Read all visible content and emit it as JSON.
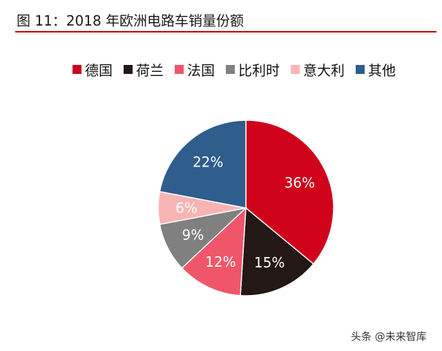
{
  "header": {
    "title": "图 11：2018 年欧洲电路车销量份额"
  },
  "chart_data": {
    "type": "pie",
    "title": "",
    "legend_position": "top",
    "start_angle_deg": 0,
    "direction": "clockwise",
    "slices": [
      {
        "label": "德国",
        "value": 36,
        "value_label": "36%",
        "color": "#d0021b"
      },
      {
        "label": "荷兰",
        "value": 15,
        "value_label": "15%",
        "color": "#231815"
      },
      {
        "label": "法国",
        "value": 12,
        "value_label": "12%",
        "color": "#f0566a"
      },
      {
        "label": "比利时",
        "value": 9,
        "value_label": "9%",
        "color": "#808080"
      },
      {
        "label": "意大利",
        "value": 6,
        "value_label": "6%",
        "color": "#f8b4b4"
      },
      {
        "label": "其他",
        "value": 22,
        "value_label": "22%",
        "color": "#2f5d8c"
      }
    ]
  },
  "watermark": "头条 @未来智库"
}
